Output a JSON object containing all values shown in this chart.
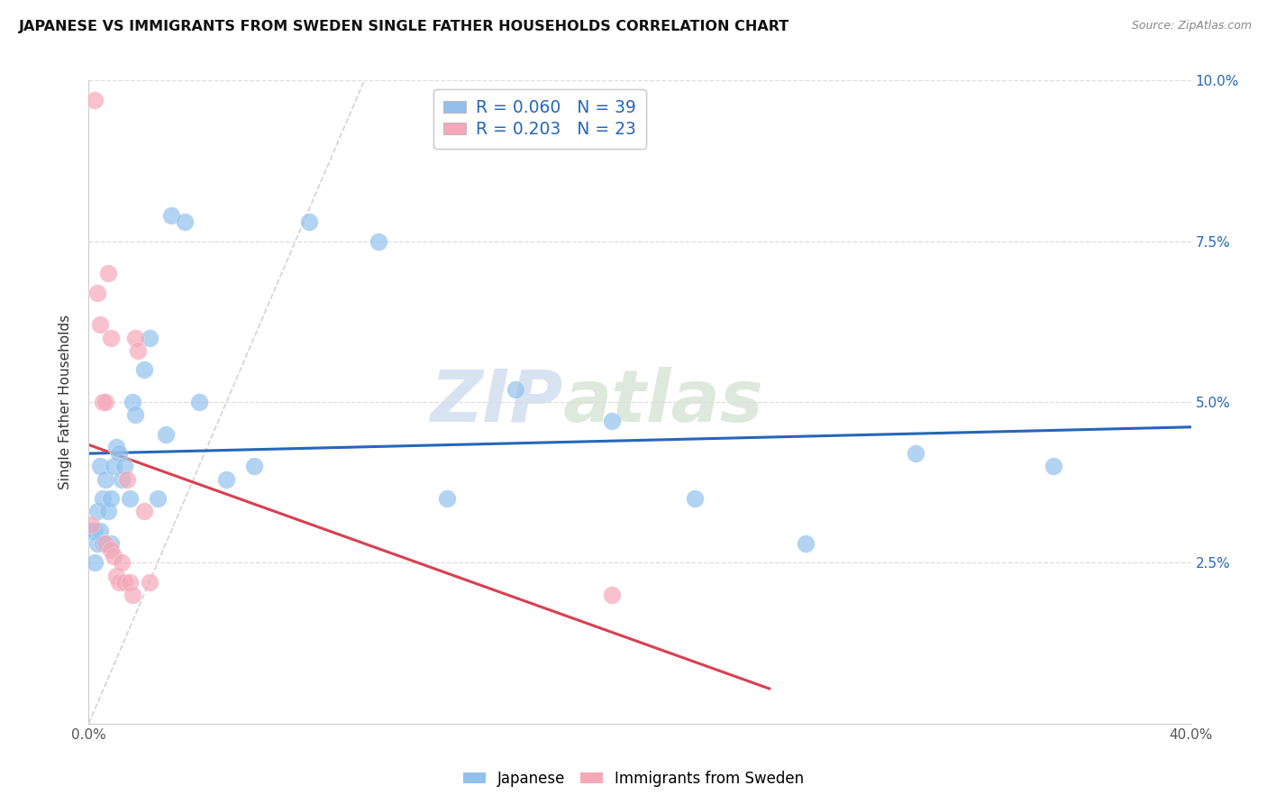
{
  "title": "JAPANESE VS IMMIGRANTS FROM SWEDEN SINGLE FATHER HOUSEHOLDS CORRELATION CHART",
  "source": "Source: ZipAtlas.com",
  "ylabel": "Single Father Households",
  "xlim": [
    0.0,
    0.4
  ],
  "ylim": [
    0.0,
    0.1
  ],
  "xticks": [
    0.0,
    0.05,
    0.1,
    0.15,
    0.2,
    0.25,
    0.3,
    0.35,
    0.4
  ],
  "yticks": [
    0.0,
    0.025,
    0.05,
    0.075,
    0.1
  ],
  "japanese_R": 0.06,
  "japanese_N": 39,
  "sweden_R": 0.203,
  "sweden_N": 23,
  "japanese_color": "#92C1ED",
  "sweden_color": "#F4A8B8",
  "japanese_line_color": "#2666B8",
  "sweden_line_color": "#D94050",
  "diag_line_color": "#C8C8C8",
  "background_color": "#FFFFFF",
  "japanese_x": [
    0.001,
    0.002,
    0.002,
    0.003,
    0.003,
    0.004,
    0.004,
    0.005,
    0.005,
    0.006,
    0.007,
    0.008,
    0.008,
    0.009,
    0.01,
    0.011,
    0.012,
    0.013,
    0.015,
    0.016,
    0.017,
    0.02,
    0.022,
    0.025,
    0.028,
    0.03,
    0.035,
    0.04,
    0.05,
    0.06,
    0.08,
    0.105,
    0.13,
    0.155,
    0.19,
    0.22,
    0.26,
    0.3,
    0.35
  ],
  "japanese_y": [
    0.03,
    0.03,
    0.025,
    0.033,
    0.028,
    0.04,
    0.03,
    0.035,
    0.028,
    0.038,
    0.033,
    0.035,
    0.028,
    0.04,
    0.043,
    0.042,
    0.038,
    0.04,
    0.035,
    0.05,
    0.048,
    0.055,
    0.06,
    0.035,
    0.045,
    0.079,
    0.078,
    0.05,
    0.038,
    0.04,
    0.078,
    0.075,
    0.035,
    0.052,
    0.047,
    0.035,
    0.028,
    0.042,
    0.04
  ],
  "sweden_x": [
    0.001,
    0.002,
    0.003,
    0.004,
    0.005,
    0.006,
    0.006,
    0.007,
    0.008,
    0.008,
    0.009,
    0.01,
    0.011,
    0.012,
    0.013,
    0.014,
    0.015,
    0.016,
    0.017,
    0.018,
    0.02,
    0.022,
    0.19
  ],
  "sweden_y": [
    0.031,
    0.097,
    0.067,
    0.062,
    0.05,
    0.05,
    0.028,
    0.07,
    0.06,
    0.027,
    0.026,
    0.023,
    0.022,
    0.025,
    0.022,
    0.038,
    0.022,
    0.02,
    0.06,
    0.058,
    0.033,
    0.022,
    0.02
  ]
}
